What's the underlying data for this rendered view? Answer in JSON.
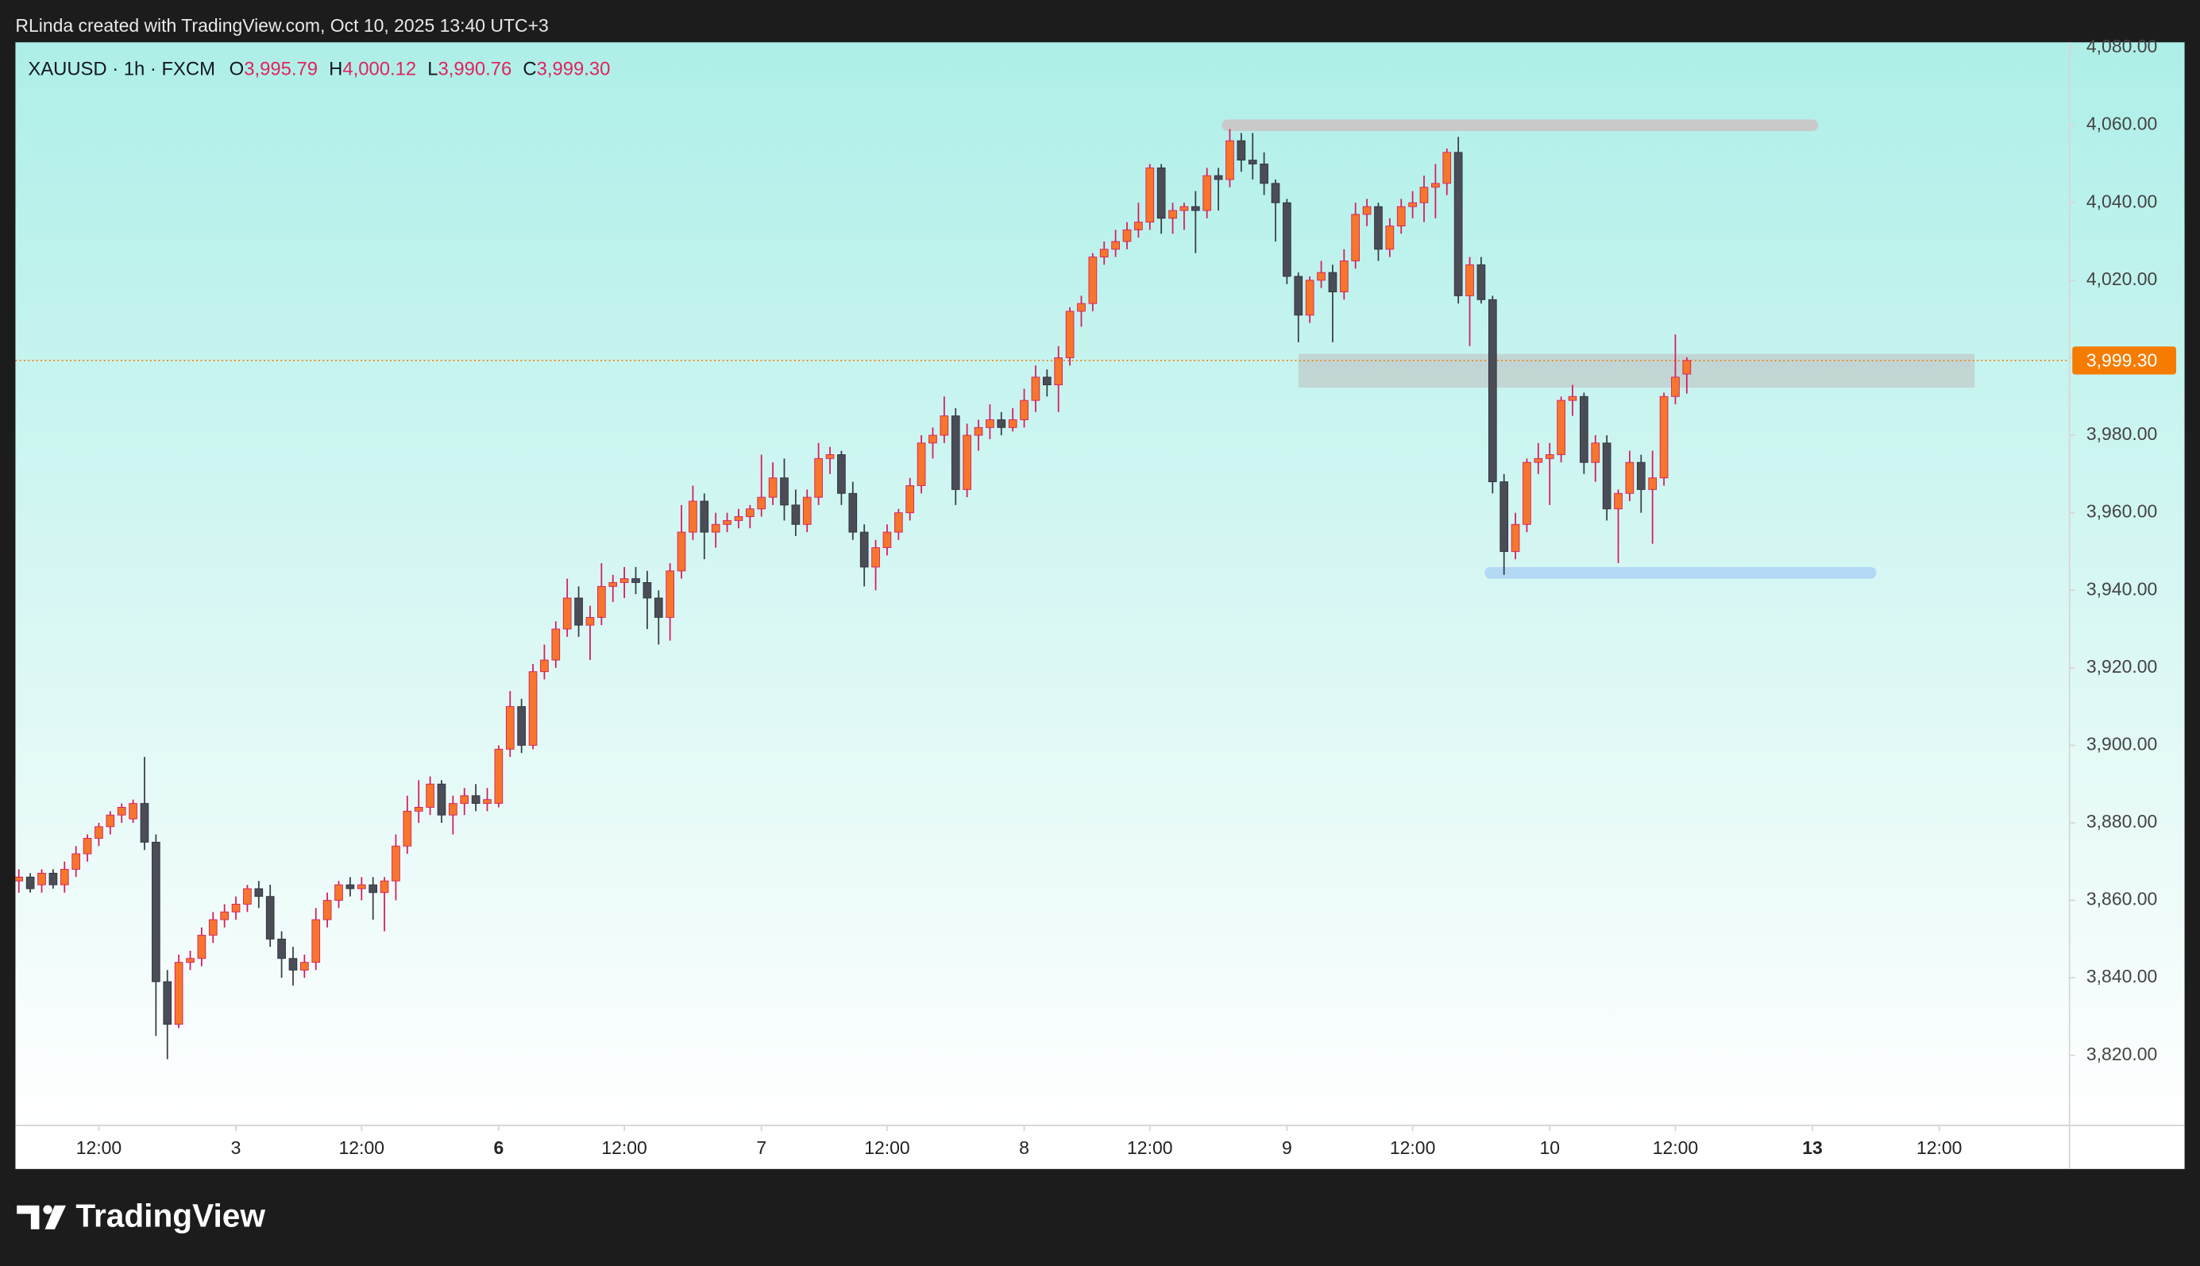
{
  "top_bar": {
    "text": "RLinda created with TradingView.com, Oct 10, 2025 13:40 UTC+3"
  },
  "footer": {
    "brand": "TradingView"
  },
  "chart_data": {
    "type": "candlestick",
    "symbol": "XAUUSD · 1h · FXCM",
    "legend": [
      {
        "key": "O",
        "value": "3,995.79"
      },
      {
        "key": "H",
        "value": "4,000.12"
      },
      {
        "key": "L",
        "value": "3,990.76"
      },
      {
        "key": "C",
        "value": "3,999.30"
      }
    ],
    "up_color": "#f7762c",
    "up_wick": "#d81b60",
    "down_color": "#4a4d57",
    "down_wick": "#3b3e47",
    "xlim": [
      -0.3,
      179.5
    ],
    "ylim": [
      3801.9,
      4081.4
    ],
    "yticks": [
      {
        "value": 3820,
        "label": "3,820.00"
      },
      {
        "value": 3840,
        "label": "3,840.00"
      },
      {
        "value": 3860,
        "label": "3,860.00"
      },
      {
        "value": 3880,
        "label": "3,880.00"
      },
      {
        "value": 3900,
        "label": "3,900.00"
      },
      {
        "value": 3920,
        "label": "3,920.00"
      },
      {
        "value": 3940,
        "label": "3,940.00"
      },
      {
        "value": 3960,
        "label": "3,960.00"
      },
      {
        "value": 3980,
        "label": "3,980.00"
      },
      {
        "value": 4000,
        "label": "4,000.00"
      },
      {
        "value": 4020,
        "label": "4,020.00"
      },
      {
        "value": 4040,
        "label": "4,040.00"
      },
      {
        "value": 4060,
        "label": "4,060.00"
      },
      {
        "value": 4080,
        "label": "4,080.00"
      }
    ],
    "xticks": [
      {
        "value": 7,
        "label": "12:00"
      },
      {
        "value": 19,
        "label": "3"
      },
      {
        "value": 30,
        "label": "12:00"
      },
      {
        "value": 42,
        "label": "6",
        "weight": "bold"
      },
      {
        "value": 53,
        "label": "12:00"
      },
      {
        "value": 65,
        "label": "7"
      },
      {
        "value": 76,
        "label": "12:00"
      },
      {
        "value": 88,
        "label": "8"
      },
      {
        "value": 99,
        "label": "12:00"
      },
      {
        "value": 111,
        "label": "9"
      },
      {
        "value": 122,
        "label": "12:00"
      },
      {
        "value": 134,
        "label": "10"
      },
      {
        "value": 145,
        "label": "12:00"
      },
      {
        "value": 157,
        "label": "13",
        "weight": "bold"
      },
      {
        "value": 168.1,
        "label": "12:00"
      }
    ],
    "last_price": {
      "value": 3999.3,
      "label": "3,999.30",
      "color": "#f57c00"
    },
    "zones": [
      {
        "x": [
          105.3,
          157.5
        ],
        "y": [
          4058.5,
          4061.5
        ],
        "color": "#c9c9c9"
      },
      {
        "x": [
          112,
          171.2
        ],
        "y": [
          3992.3,
          4001
        ],
        "color": "rgba(190,190,190,0.55)"
      },
      {
        "x": [
          128.3,
          162.6
        ],
        "y": [
          3943,
          3946
        ],
        "color": "#b3d9f5"
      }
    ],
    "ohlc": [
      [
        3865,
        3868,
        3862,
        3866
      ],
      [
        3866,
        3867,
        3862,
        3863
      ],
      [
        3864,
        3868,
        3862,
        3867
      ],
      [
        3867,
        3868,
        3863,
        3864
      ],
      [
        3864,
        3870,
        3862,
        3868
      ],
      [
        3868,
        3874,
        3866,
        3872
      ],
      [
        3872,
        3877,
        3870,
        3876
      ],
      [
        3876,
        3880,
        3874,
        3879
      ],
      [
        3879,
        3883,
        3877,
        3882
      ],
      [
        3882,
        3885,
        3880,
        3884
      ],
      [
        3881,
        3886,
        3880,
        3885
      ],
      [
        3885,
        3897,
        3873,
        3875
      ],
      [
        3875,
        3877,
        3825,
        3839
      ],
      [
        3839,
        3842,
        3819,
        3828
      ],
      [
        3828,
        3846,
        3827,
        3844
      ],
      [
        3844,
        3847,
        3842,
        3845
      ],
      [
        3845,
        3853,
        3843,
        3851
      ],
      [
        3851,
        3857,
        3849,
        3855
      ],
      [
        3855,
        3859,
        3853,
        3857
      ],
      [
        3857,
        3861,
        3855,
        3859
      ],
      [
        3859,
        3864,
        3857,
        3863
      ],
      [
        3863,
        3865,
        3858,
        3861
      ],
      [
        3861,
        3864,
        3848,
        3850
      ],
      [
        3850,
        3852,
        3840,
        3845
      ],
      [
        3845,
        3848,
        3838,
        3842
      ],
      [
        3842,
        3846,
        3840,
        3844
      ],
      [
        3844,
        3858,
        3842,
        3855
      ],
      [
        3855,
        3862,
        3853,
        3860
      ],
      [
        3860,
        3865,
        3858,
        3864
      ],
      [
        3864,
        3866,
        3861,
        3863
      ],
      [
        3863,
        3866,
        3860,
        3864
      ],
      [
        3864,
        3866,
        3855,
        3862
      ],
      [
        3862,
        3866,
        3852,
        3865
      ],
      [
        3865,
        3877,
        3860,
        3874
      ],
      [
        3874,
        3887,
        3872,
        3883
      ],
      [
        3883,
        3891,
        3880,
        3884
      ],
      [
        3884,
        3892,
        3882,
        3890
      ],
      [
        3890,
        3891,
        3880,
        3882
      ],
      [
        3882,
        3887,
        3877,
        3885
      ],
      [
        3885,
        3889,
        3882,
        3887
      ],
      [
        3887,
        3890,
        3883,
        3885
      ],
      [
        3885,
        3889,
        3883,
        3886
      ],
      [
        3885,
        3900,
        3884,
        3899
      ],
      [
        3899,
        3914,
        3897,
        3910
      ],
      [
        3910,
        3912,
        3898,
        3900
      ],
      [
        3900,
        3921,
        3899,
        3919
      ],
      [
        3919,
        3926,
        3917,
        3922
      ],
      [
        3922,
        3932,
        3920,
        3930
      ],
      [
        3930,
        3943,
        3928,
        3938
      ],
      [
        3938,
        3941,
        3928,
        3931
      ],
      [
        3931,
        3936,
        3922,
        3933
      ],
      [
        3933,
        3947,
        3931,
        3941
      ],
      [
        3941,
        3944,
        3937,
        3942
      ],
      [
        3942,
        3946,
        3938,
        3943
      ],
      [
        3943,
        3946,
        3939,
        3942
      ],
      [
        3942,
        3945,
        3930,
        3938
      ],
      [
        3938,
        3940,
        3926,
        3933
      ],
      [
        3933,
        3947,
        3927,
        3945
      ],
      [
        3945,
        3962,
        3943,
        3955
      ],
      [
        3955,
        3967,
        3953,
        3963
      ],
      [
        3963,
        3965,
        3948,
        3955
      ],
      [
        3955,
        3960,
        3951,
        3957
      ],
      [
        3957,
        3960,
        3955,
        3958
      ],
      [
        3958,
        3961,
        3956,
        3959
      ],
      [
        3959,
        3962,
        3956,
        3961
      ],
      [
        3961,
        3975,
        3959,
        3964
      ],
      [
        3964,
        3973,
        3962,
        3969
      ],
      [
        3969,
        3974,
        3958,
        3962
      ],
      [
        3962,
        3966,
        3954,
        3957
      ],
      [
        3957,
        3966,
        3955,
        3964
      ],
      [
        3964,
        3978,
        3962,
        3974
      ],
      [
        3974,
        3977,
        3970,
        3975
      ],
      [
        3975,
        3976,
        3962,
        3965
      ],
      [
        3965,
        3968,
        3953,
        3955
      ],
      [
        3955,
        3957,
        3941,
        3946
      ],
      [
        3946,
        3953,
        3940,
        3951
      ],
      [
        3951,
        3957,
        3949,
        3955
      ],
      [
        3955,
        3961,
        3953,
        3960
      ],
      [
        3960,
        3969,
        3958,
        3967
      ],
      [
        3967,
        3980,
        3965,
        3978
      ],
      [
        3978,
        3982,
        3974,
        3980
      ],
      [
        3980,
        3990,
        3978,
        3985
      ],
      [
        3985,
        3987,
        3962,
        3966
      ],
      [
        3966,
        3983,
        3964,
        3980
      ],
      [
        3980,
        3984,
        3976,
        3982
      ],
      [
        3982,
        3988,
        3979,
        3984
      ],
      [
        3984,
        3986,
        3980,
        3982
      ],
      [
        3982,
        3987,
        3981,
        3984
      ],
      [
        3984,
        3992,
        3982,
        3989
      ],
      [
        3989,
        3998,
        3986,
        3995
      ],
      [
        3995,
        3997,
        3990,
        3993
      ],
      [
        3993,
        4003,
        3986,
        4000
      ],
      [
        4000,
        4013,
        3998,
        4012
      ],
      [
        4012,
        4016,
        4008,
        4014
      ],
      [
        4014,
        4027,
        4012,
        4026
      ],
      [
        4026,
        4030,
        4024,
        4028
      ],
      [
        4028,
        4033,
        4026,
        4030
      ],
      [
        4030,
        4035,
        4028,
        4033
      ],
      [
        4033,
        4040,
        4031,
        4035
      ],
      [
        4035,
        4050,
        4033,
        4049
      ],
      [
        4049,
        4050,
        4032,
        4036
      ],
      [
        4036,
        4040,
        4032,
        4038
      ],
      [
        4038,
        4040,
        4033,
        4039
      ],
      [
        4039,
        4043,
        4027,
        4038
      ],
      [
        4038,
        4049,
        4036,
        4047
      ],
      [
        4047,
        4049,
        4038,
        4046
      ],
      [
        4046,
        4059,
        4044,
        4056
      ],
      [
        4056,
        4058,
        4048,
        4051
      ],
      [
        4051,
        4058,
        4046,
        4050
      ],
      [
        4050,
        4053,
        4042,
        4045
      ],
      [
        4045,
        4046,
        4030,
        4040
      ],
      [
        4040,
        4041,
        4019,
        4021
      ],
      [
        4021,
        4022,
        4004,
        4011
      ],
      [
        4011,
        4021,
        4009,
        4020
      ],
      [
        4020,
        4025,
        4018,
        4022
      ],
      [
        4022,
        4024,
        4004,
        4017
      ],
      [
        4017,
        4028,
        4015,
        4025
      ],
      [
        4025,
        4040,
        4023,
        4037
      ],
      [
        4037,
        4041,
        4034,
        4039
      ],
      [
        4039,
        4040,
        4025,
        4028
      ],
      [
        4028,
        4036,
        4026,
        4034
      ],
      [
        4034,
        4041,
        4032,
        4039
      ],
      [
        4039,
        4043,
        4036,
        4040
      ],
      [
        4040,
        4047,
        4035,
        4044
      ],
      [
        4044,
        4050,
        4036,
        4045
      ],
      [
        4045,
        4054,
        4042,
        4053
      ],
      [
        4053,
        4057,
        4014,
        4016
      ],
      [
        4016,
        4026,
        4003,
        4024
      ],
      [
        4024,
        4026,
        4014,
        4015
      ],
      [
        4015,
        4016,
        3965,
        3968
      ],
      [
        3968,
        3970,
        3944,
        3950
      ],
      [
        3950,
        3960,
        3948,
        3957
      ],
      [
        3957,
        3974,
        3955,
        3973
      ],
      [
        3973,
        3978,
        3970,
        3974
      ],
      [
        3974,
        3978,
        3962,
        3975
      ],
      [
        3975,
        3990,
        3973,
        3989
      ],
      [
        3989,
        3993,
        3985,
        3990
      ],
      [
        3990,
        3991,
        3970,
        3973
      ],
      [
        3973,
        3980,
        3968,
        3978
      ],
      [
        3978,
        3980,
        3958,
        3961
      ],
      [
        3961,
        3966,
        3947,
        3965
      ],
      [
        3965,
        3976,
        3963,
        3973
      ],
      [
        3973,
        3975,
        3960,
        3966
      ],
      [
        3966,
        3976,
        3952,
        3969
      ],
      [
        3969,
        3991,
        3967,
        3990
      ],
      [
        3990,
        4006,
        3988,
        3995
      ],
      [
        3995.79,
        4000.12,
        3990.76,
        3999.3
      ]
    ]
  }
}
